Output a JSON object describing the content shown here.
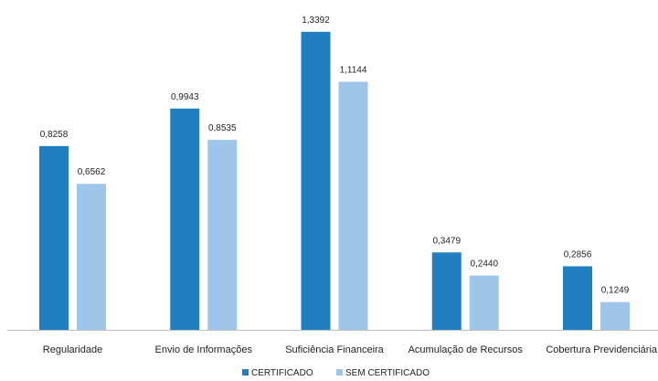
{
  "chart_data": {
    "type": "bar",
    "categories": [
      "Regularidade",
      "Envio de Informações",
      "Suficiência Financeira",
      "Acumulação de Recursos",
      "Cobertura Previdenciária"
    ],
    "series": [
      {
        "name": "CERTIFICADO",
        "values": [
          0.8258,
          0.9943,
          1.3392,
          0.3479,
          0.2856
        ],
        "labels": [
          "0,8258",
          "0,9943",
          "1,3392",
          "0,3479",
          "0,2856"
        ],
        "color": "#1f7fc0"
      },
      {
        "name": "SEM CERTIFICADO",
        "values": [
          0.6562,
          0.8535,
          1.1144,
          0.244,
          0.1249
        ],
        "labels": [
          "0,6562",
          "0,8535",
          "1,1144",
          "0,2440",
          "0,1249"
        ],
        "color": "#9ec6ea"
      }
    ],
    "title": "",
    "xlabel": "",
    "ylabel": "",
    "ylim": [
      0,
      1.4
    ],
    "grid": false,
    "legend": "bottom",
    "axis_color": "#bfbfbf"
  }
}
